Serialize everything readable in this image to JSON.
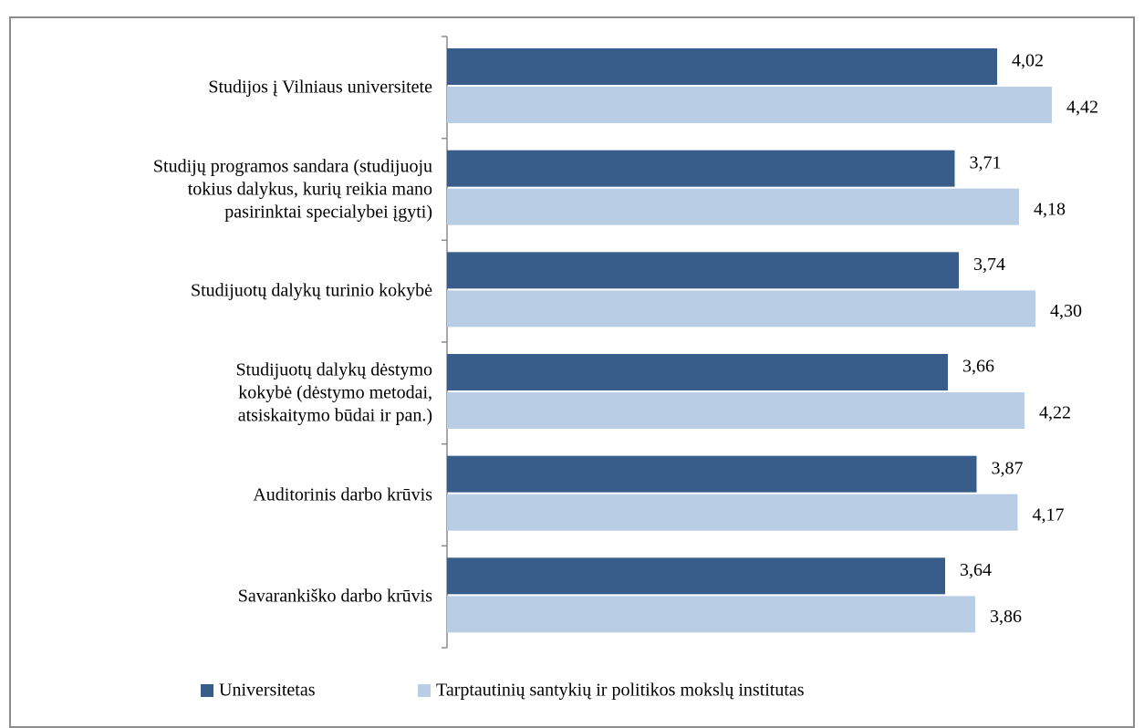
{
  "chart_data": {
    "type": "bar",
    "orientation": "horizontal",
    "categories": [
      "Studijos į Vilniaus universitete",
      "Studijų programos sandara (studijuoju\ntokius dalykus, kurių reikia mano\npasirinktai specialybei įgyti)",
      "Studijuotų dalykų turinio kokybė",
      "Studijuotų dalykų dėstymo\nkokybė (dėstymo metodai,\natsiskaitymo būdai ir pan.)",
      "Auditorinis darbo krūvis",
      "Savarankiško darbo krūvis"
    ],
    "series": [
      {
        "name": "Universitetas",
        "color": "#385d8a",
        "values": [
          4.02,
          3.71,
          3.74,
          3.66,
          3.87,
          3.64
        ],
        "value_labels": [
          "4,02",
          "3,71",
          "3,74",
          "3,66",
          "3,87",
          "3,64"
        ]
      },
      {
        "name": "Tarptautinių santykių ir politikos mokslų institutas",
        "color": "#b9cde5",
        "values": [
          4.42,
          4.18,
          4.3,
          4.22,
          4.17,
          3.86
        ],
        "value_labels": [
          "4,42",
          "4,18",
          "4,30",
          "4,22",
          "4,17",
          "3,86"
        ]
      }
    ],
    "xlim": [
      0,
      5
    ],
    "legend": "bottom"
  }
}
